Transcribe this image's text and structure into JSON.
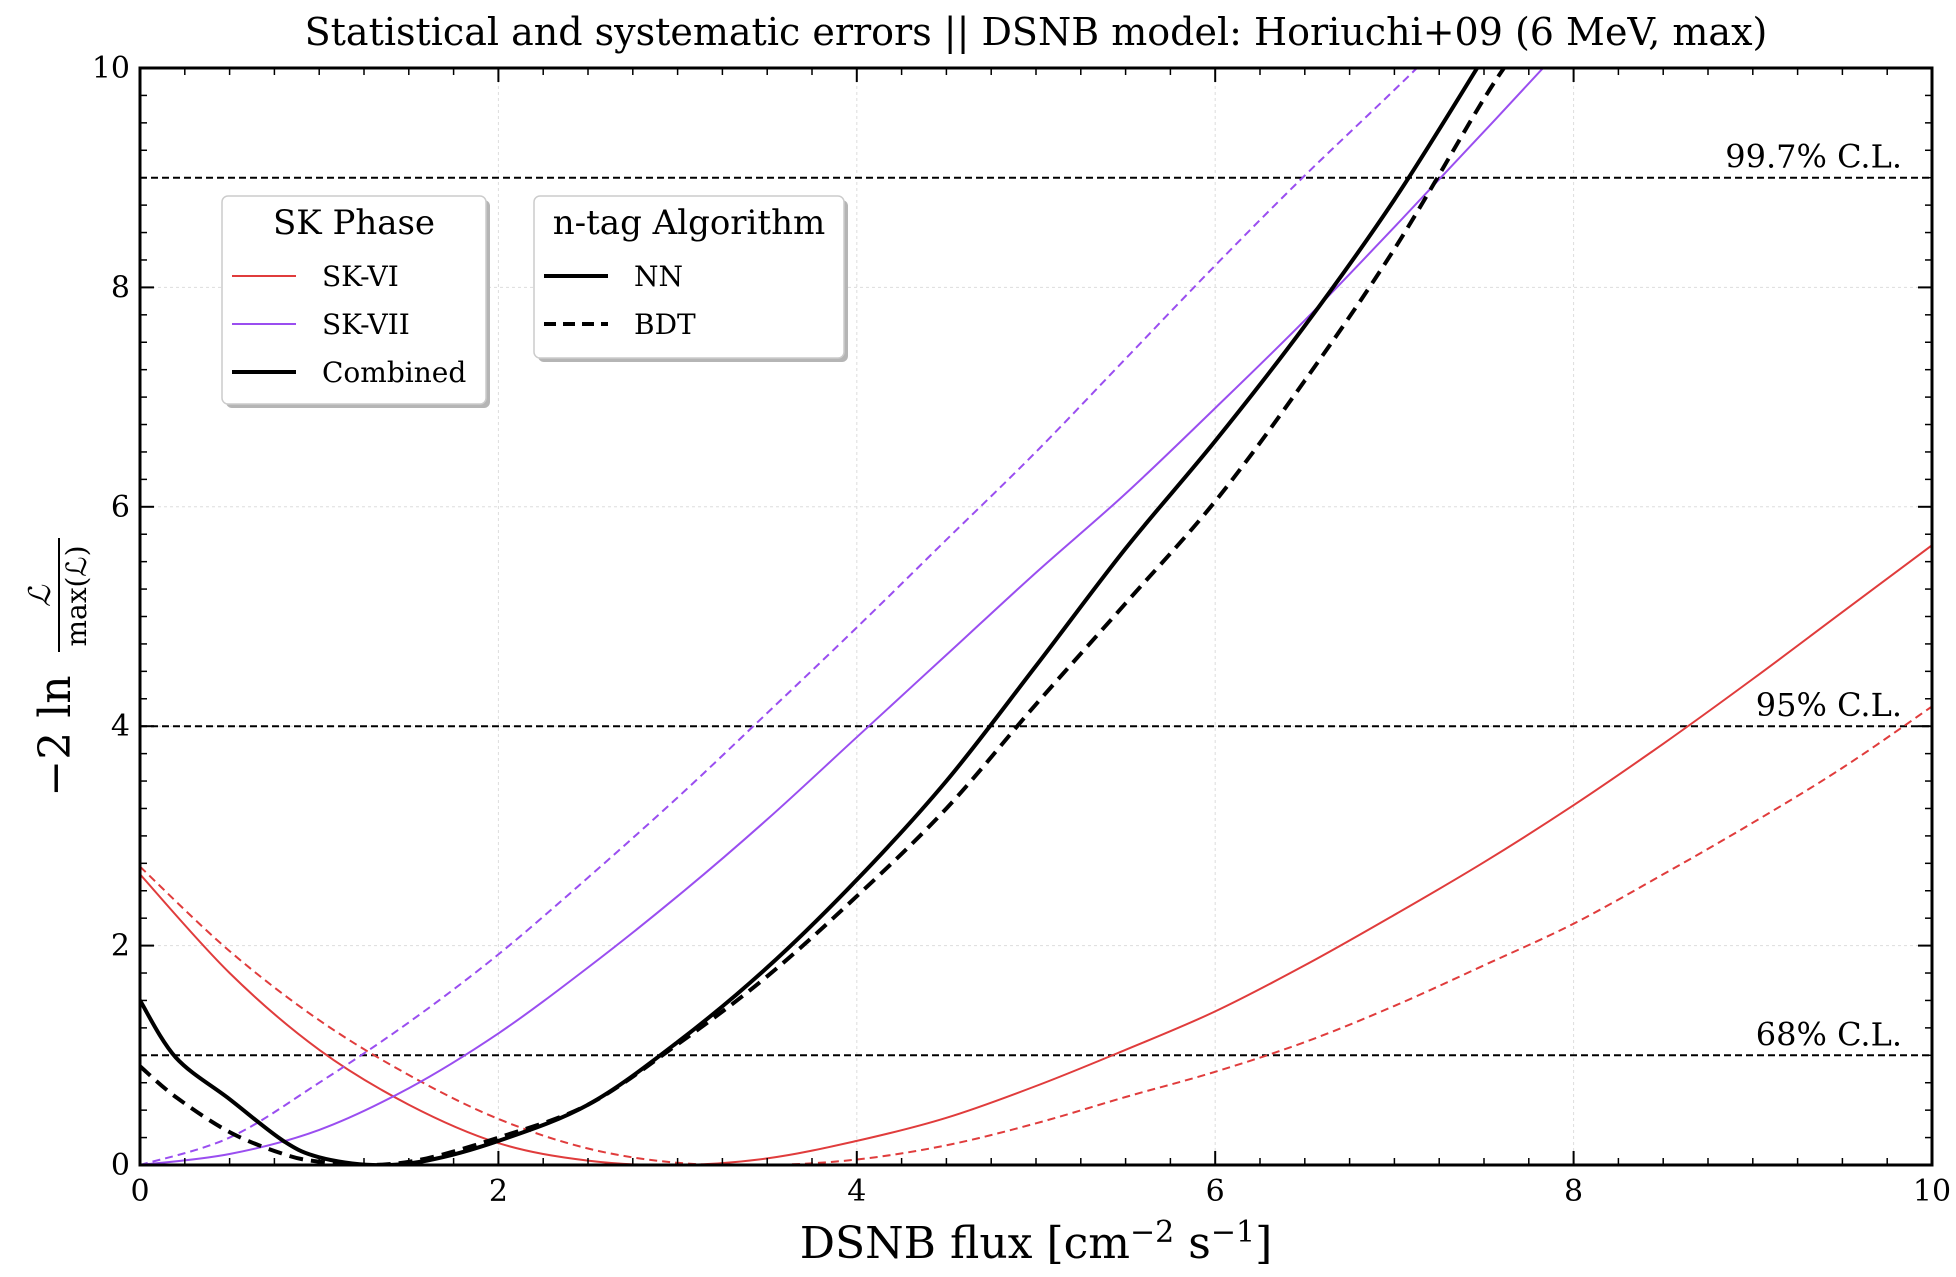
{
  "chart_data": {
    "type": "line",
    "title": "Statistical and systematic errors || DSNB model: Horiuchi+09 (6 MeV, max)",
    "xlabel_main": "DSNB flux [cm",
    "xlabel_exp1": "−2",
    "xlabel_unit": " s",
    "xlabel_exp2": "−1",
    "xlabel_close": "]",
    "ylabel_prefix": "−2 ln",
    "ylabel_num": "ℒ",
    "ylabel_den": "max(ℒ)",
    "xlim": [
      0,
      10
    ],
    "ylim": [
      0,
      10
    ],
    "xticks": [
      "0",
      "2",
      "4",
      "6",
      "8",
      "10"
    ],
    "yticks": [
      "0",
      "2",
      "4",
      "6",
      "8",
      "10"
    ],
    "grid": true,
    "reference_lines": [
      {
        "y": 1,
        "label": "68% C.L."
      },
      {
        "y": 4,
        "label": "95% C.L."
      },
      {
        "y": 9,
        "label": "99.7% C.L."
      }
    ],
    "colors": {
      "sk6": "#e03c3c",
      "sk7": "#9a4ef0",
      "combined": "#000000",
      "grid": "#dddddd"
    },
    "series": [
      {
        "name": "SK-VI NN",
        "phase": "sk6",
        "style": "solid",
        "x": [
          0,
          0.5,
          1,
          1.5,
          2,
          2.5,
          3,
          3.5,
          4,
          4.5,
          5,
          5.5,
          6,
          6.5,
          7,
          7.5,
          8,
          8.5,
          9,
          9.5,
          10
        ],
        "y": [
          2.65,
          1.75,
          1.05,
          0.55,
          0.2,
          0.04,
          0.0,
          0.06,
          0.22,
          0.43,
          0.72,
          1.05,
          1.4,
          1.82,
          2.28,
          2.76,
          3.28,
          3.84,
          4.43,
          5.04,
          5.65
        ]
      },
      {
        "name": "SK-VI BDT",
        "phase": "sk6",
        "style": "dashed",
        "x": [
          0,
          0.5,
          1,
          1.5,
          2,
          2.5,
          3,
          3.5,
          4,
          4.5,
          5,
          5.5,
          6,
          6.5,
          7,
          7.5,
          8,
          8.5,
          9,
          9.5,
          10
        ],
        "y": [
          2.72,
          1.95,
          1.32,
          0.82,
          0.42,
          0.15,
          0.02,
          0.0,
          0.05,
          0.18,
          0.38,
          0.62,
          0.85,
          1.12,
          1.45,
          1.82,
          2.2,
          2.65,
          3.12,
          3.62,
          4.18
        ]
      },
      {
        "name": "SK-VII NN",
        "phase": "sk7",
        "style": "solid",
        "x": [
          0,
          0.5,
          1,
          1.5,
          2,
          2.5,
          3,
          3.5,
          4,
          4.5,
          5,
          5.5,
          6,
          6.5,
          7,
          7.5,
          8,
          8.5
        ],
        "y": [
          0.0,
          0.1,
          0.32,
          0.7,
          1.2,
          1.8,
          2.45,
          3.15,
          3.9,
          4.65,
          5.4,
          6.12,
          6.9,
          7.7,
          8.55,
          9.42,
          10.3,
          11.2
        ]
      },
      {
        "name": "SK-VII BDT",
        "phase": "sk7",
        "style": "dashed",
        "x": [
          0,
          0.5,
          1,
          1.5,
          2,
          2.5,
          3,
          3.5,
          4,
          4.5,
          5,
          5.5,
          6,
          6.5,
          7,
          7.5,
          8
        ],
        "y": [
          0.0,
          0.25,
          0.75,
          1.3,
          1.92,
          2.62,
          3.35,
          4.12,
          4.9,
          5.7,
          6.5,
          7.35,
          8.2,
          9.02,
          9.8,
          10.6,
          11.4
        ]
      },
      {
        "name": "Combined NN",
        "phase": "combined",
        "style": "solid",
        "x": [
          0,
          0.2,
          0.5,
          0.8,
          1,
          1.3,
          1.6,
          2,
          2.5,
          3,
          3.5,
          4,
          4.5,
          5,
          5.5,
          6,
          6.5,
          7,
          7.5
        ],
        "y": [
          1.5,
          0.98,
          0.6,
          0.22,
          0.07,
          0.0,
          0.04,
          0.22,
          0.55,
          1.12,
          1.8,
          2.6,
          3.5,
          4.55,
          5.62,
          6.6,
          7.65,
          8.8,
          10.1
        ]
      },
      {
        "name": "Combined BDT",
        "phase": "combined",
        "style": "dashed",
        "x": [
          0,
          0.2,
          0.5,
          0.8,
          1,
          1.3,
          1.6,
          2,
          2.5,
          3,
          3.5,
          4,
          4.5,
          5,
          5.5,
          6,
          6.5,
          7,
          7.5,
          7.7
        ],
        "y": [
          0.9,
          0.62,
          0.3,
          0.1,
          0.03,
          0.0,
          0.06,
          0.25,
          0.55,
          1.1,
          1.72,
          2.45,
          3.25,
          4.2,
          5.12,
          6.05,
          7.15,
          8.35,
          9.72,
          10.2
        ]
      }
    ],
    "legends": [
      {
        "title": "SK Phase",
        "entries": [
          {
            "label": "SK-VI",
            "color": "#e03c3c",
            "style": "solid",
            "weight": "thin"
          },
          {
            "label": "SK-VII",
            "color": "#9a4ef0",
            "style": "solid",
            "weight": "thin"
          },
          {
            "label": "Combined",
            "color": "#000000",
            "style": "solid",
            "weight": "thick"
          }
        ]
      },
      {
        "title": "n-tag Algorithm",
        "entries": [
          {
            "label": "NN",
            "color": "#000000",
            "style": "solid",
            "weight": "thick"
          },
          {
            "label": "BDT",
            "color": "#000000",
            "style": "dashed",
            "weight": "thick"
          }
        ]
      }
    ]
  }
}
